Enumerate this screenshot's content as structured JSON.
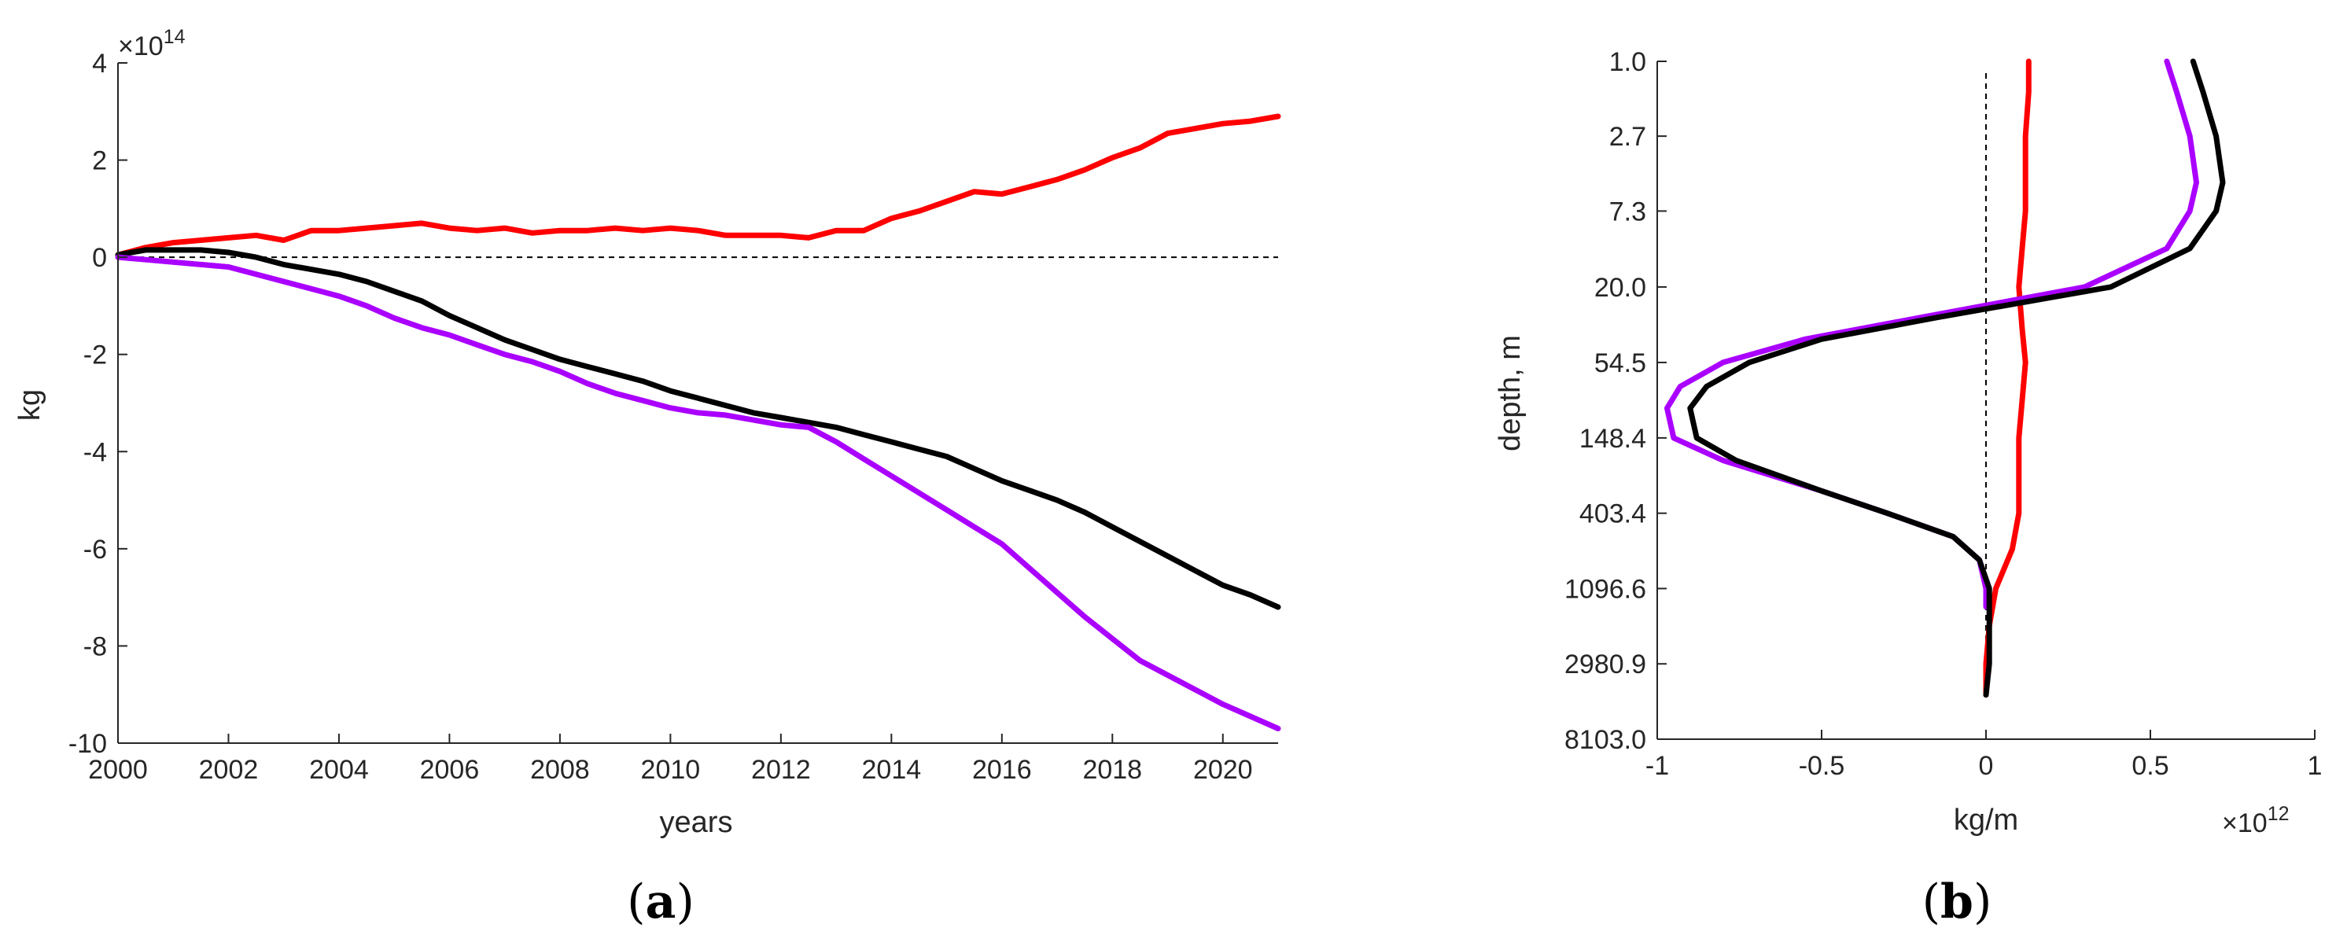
{
  "chart_data": [
    {
      "type": "line",
      "panel_label": {
        "open": "(",
        "letter": "a",
        "close": ")"
      },
      "xlabel": "years",
      "ylabel": "kg",
      "exponent_label": {
        "base": "×10",
        "power": "14"
      },
      "xlim": [
        2000,
        2021
      ],
      "ylim": [
        -10,
        4
      ],
      "xticks": [
        2000,
        2002,
        2004,
        2006,
        2008,
        2010,
        2012,
        2014,
        2016,
        2018,
        2020
      ],
      "yticks": [
        4,
        2,
        0,
        -2,
        -4,
        -6,
        -8,
        -10
      ],
      "zero_line": true,
      "series": [
        {
          "name": "red",
          "color": "#ff0000",
          "x": [
            2000.0,
            2000.5,
            2001.0,
            2001.5,
            2002.0,
            2002.5,
            2003.0,
            2003.5,
            2004.0,
            2004.5,
            2005.0,
            2005.5,
            2006.0,
            2006.5,
            2007.0,
            2007.5,
            2008.0,
            2008.5,
            2009.0,
            2009.5,
            2010.0,
            2010.5,
            2011.0,
            2011.5,
            2012.0,
            2012.5,
            2013.0,
            2013.5,
            2014.0,
            2014.5,
            2015.0,
            2015.5,
            2016.0,
            2016.5,
            2017.0,
            2017.5,
            2018.0,
            2018.5,
            2019.0,
            2019.5,
            2020.0,
            2020.5,
            2021.0
          ],
          "y": [
            0.05,
            0.2,
            0.3,
            0.35,
            0.4,
            0.45,
            0.35,
            0.55,
            0.55,
            0.6,
            0.65,
            0.7,
            0.6,
            0.55,
            0.6,
            0.5,
            0.55,
            0.55,
            0.6,
            0.55,
            0.6,
            0.55,
            0.45,
            0.45,
            0.45,
            0.4,
            0.55,
            0.55,
            0.8,
            0.95,
            1.15,
            1.35,
            1.3,
            1.45,
            1.6,
            1.8,
            2.05,
            2.25,
            2.55,
            2.65,
            2.75,
            2.8,
            2.9
          ]
        },
        {
          "name": "black",
          "color": "#000000",
          "x": [
            2000.0,
            2000.5,
            2001.0,
            2001.5,
            2002.0,
            2002.5,
            2003.0,
            2003.5,
            2004.0,
            2004.5,
            2005.0,
            2005.5,
            2006.0,
            2006.5,
            2007.0,
            2007.5,
            2008.0,
            2008.5,
            2009.0,
            2009.5,
            2010.0,
            2010.5,
            2011.0,
            2011.5,
            2012.0,
            2012.5,
            2013.0,
            2013.5,
            2014.0,
            2014.5,
            2015.0,
            2015.5,
            2016.0,
            2016.5,
            2017.0,
            2017.5,
            2018.0,
            2018.5,
            2019.0,
            2019.5,
            2020.0,
            2020.5,
            2021.0
          ],
          "y": [
            0.05,
            0.15,
            0.15,
            0.15,
            0.1,
            0.0,
            -0.15,
            -0.25,
            -0.35,
            -0.5,
            -0.7,
            -0.9,
            -1.2,
            -1.45,
            -1.7,
            -1.9,
            -2.1,
            -2.25,
            -2.4,
            -2.55,
            -2.75,
            -2.9,
            -3.05,
            -3.2,
            -3.3,
            -3.4,
            -3.5,
            -3.65,
            -3.8,
            -3.95,
            -4.1,
            -4.35,
            -4.6,
            -4.8,
            -5.0,
            -5.25,
            -5.55,
            -5.85,
            -6.15,
            -6.45,
            -6.75,
            -6.95,
            -7.2
          ]
        },
        {
          "name": "purple",
          "color": "#aa00ff",
          "x": [
            2000.0,
            2000.5,
            2001.0,
            2001.5,
            2002.0,
            2002.5,
            2003.0,
            2003.5,
            2004.0,
            2004.5,
            2005.0,
            2005.5,
            2006.0,
            2006.5,
            2007.0,
            2007.5,
            2008.0,
            2008.5,
            2009.0,
            2009.5,
            2010.0,
            2010.5,
            2011.0,
            2011.5,
            2012.0,
            2012.5,
            2013.0,
            2013.5,
            2014.0,
            2014.5,
            2015.0,
            2015.5,
            2016.0,
            2016.5,
            2017.0,
            2017.5,
            2018.0,
            2018.5,
            2019.0,
            2019.5,
            2020.0,
            2020.5,
            2021.0
          ],
          "y": [
            0.0,
            -0.05,
            -0.1,
            -0.15,
            -0.2,
            -0.35,
            -0.5,
            -0.65,
            -0.8,
            -1.0,
            -1.25,
            -1.45,
            -1.6,
            -1.8,
            -2.0,
            -2.15,
            -2.35,
            -2.6,
            -2.8,
            -2.95,
            -3.1,
            -3.2,
            -3.25,
            -3.35,
            -3.45,
            -3.5,
            -3.8,
            -4.15,
            -4.5,
            -4.85,
            -5.2,
            -5.55,
            -5.9,
            -6.4,
            -6.9,
            -7.4,
            -7.85,
            -8.3,
            -8.6,
            -8.9,
            -9.2,
            -9.45,
            -9.7
          ]
        }
      ]
    },
    {
      "type": "line",
      "panel_label": {
        "open": "(",
        "letter": "b",
        "close": ")"
      },
      "xlabel": "kg/m",
      "ylabel": "depth, m",
      "exponent_label": {
        "base": "×10",
        "power": "12"
      },
      "xlim": [
        -1,
        1
      ],
      "xticks": [
        -1,
        -0.5,
        0,
        0.5,
        1
      ],
      "xtick_labels": [
        "-1",
        "-0.5",
        "0",
        "0.5",
        "1"
      ],
      "yticks_depth_m": [
        "1.0",
        "2.7",
        "7.3",
        "20.0",
        "54.5",
        "148.4",
        "403.4",
        "1096.6",
        "2980.9",
        "8103.0"
      ],
      "y_axis_reversed": true,
      "y_axis_scale": "log depth",
      "zero_line": true,
      "series": [
        {
          "name": "red",
          "color": "#ff0000",
          "depth": [
            1.0,
            1.5,
            2.7,
            5.0,
            7.3,
            12.0,
            20.0,
            35.0,
            54.5,
            90.0,
            148.4,
            250.0,
            403.4,
            650.0,
            1096.6,
            1800.0,
            2980.9,
            4500.0
          ],
          "value": [
            0.13,
            0.13,
            0.12,
            0.12,
            0.12,
            0.11,
            0.1,
            0.11,
            0.12,
            0.11,
            0.1,
            0.1,
            0.1,
            0.08,
            0.03,
            0.01,
            0.0,
            0.0
          ]
        },
        {
          "name": "purple",
          "color": "#aa00ff",
          "depth": [
            1.0,
            1.5,
            2.7,
            5.0,
            7.3,
            12.0,
            20.0,
            30.0,
            40.0,
            54.5,
            75.0,
            100.0,
            148.4,
            200.0,
            300.0,
            403.4,
            550.0,
            750.0,
            1096.6,
            1400.0
          ],
          "value": [
            0.55,
            0.58,
            0.62,
            0.64,
            0.62,
            0.55,
            0.3,
            -0.2,
            -0.55,
            -0.8,
            -0.93,
            -0.97,
            -0.95,
            -0.8,
            -0.5,
            -0.3,
            -0.1,
            -0.02,
            0.0,
            0.0
          ]
        },
        {
          "name": "black",
          "color": "#000000",
          "depth": [
            1.0,
            1.5,
            2.7,
            5.0,
            7.3,
            12.0,
            20.0,
            30.0,
            40.0,
            54.5,
            75.0,
            100.0,
            148.4,
            200.0,
            300.0,
            403.4,
            550.0,
            750.0,
            1096.6,
            1500.0,
            2980.9,
            4500.0
          ],
          "value": [
            0.63,
            0.66,
            0.7,
            0.72,
            0.7,
            0.62,
            0.38,
            -0.15,
            -0.5,
            -0.72,
            -0.85,
            -0.9,
            -0.88,
            -0.76,
            -0.5,
            -0.3,
            -0.1,
            -0.02,
            0.01,
            0.01,
            0.01,
            0.0
          ]
        }
      ]
    }
  ]
}
